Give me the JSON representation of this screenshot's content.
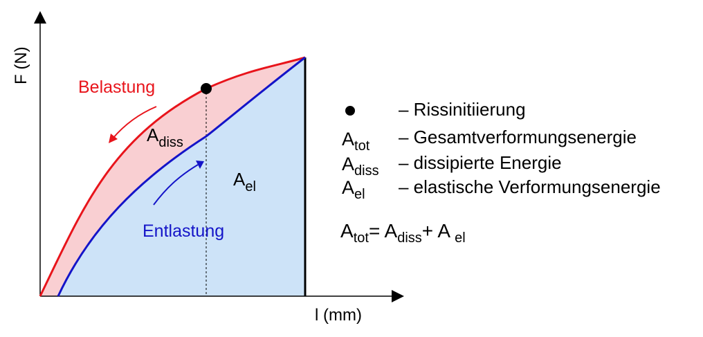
{
  "axes": {
    "y_label": "F (N)",
    "x_label": "l (mm)"
  },
  "curve_labels": {
    "loading": "Belastung",
    "unloading": "Entlastung"
  },
  "area_labels": {
    "diss_main": "A",
    "diss_sub": "diss",
    "el_main": "A",
    "el_sub": "el"
  },
  "legend": {
    "crack": {
      "desc": "– Rissinitiierung"
    },
    "tot": {
      "main": "A",
      "sub": "tot",
      "desc": "– Gesamtverformungsenergie"
    },
    "diss": {
      "main": "A",
      "sub": "diss",
      "desc": "– dissipierte Energie"
    },
    "el": {
      "main": "A",
      "sub": "el",
      "desc": "– elastische Verformungsenergie"
    }
  },
  "formula": {
    "a1": "A",
    "s1": "tot",
    "eq": "= ",
    "a2": "A",
    "s2": "diss",
    "plus": "+ ",
    "a3": "A",
    "s3": "el"
  },
  "colors": {
    "loading": "#e8141b",
    "unloading": "#1414c8",
    "diss_fill": "#f9cfd2",
    "el_fill": "#cde3f8",
    "axis": "#000000"
  }
}
